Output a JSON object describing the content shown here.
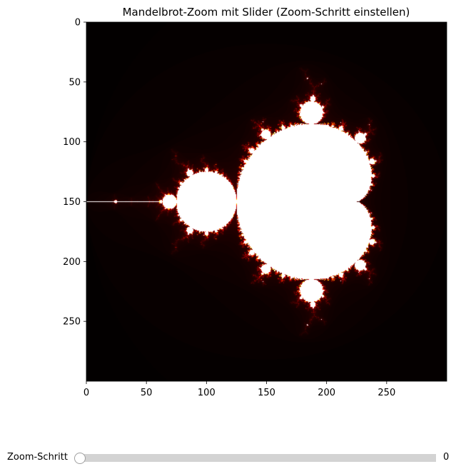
{
  "chart_data": {
    "type": "heatmap",
    "title": "Mandelbrot-Zoom mit Slider (Zoom-Schritt einstellen)",
    "xlabel": "",
    "ylabel": "",
    "image_size": [
      300,
      300
    ],
    "xlim": [
      0,
      300
    ],
    "ylim": [
      300,
      0
    ],
    "x_ticks": [
      0,
      50,
      100,
      150,
      200,
      250
    ],
    "y_ticks": [
      0,
      50,
      100,
      150,
      200,
      250
    ],
    "colormap": "hot",
    "complex_region": {
      "re": [
        -2.0,
        1.0
      ],
      "im": [
        -1.5,
        1.5
      ]
    },
    "max_iterations": 256
  },
  "slider": {
    "label": "Zoom-Schritt",
    "value": "0",
    "fraction": 0,
    "track_color": "#d3d3d3",
    "handle_color": "#ffffff"
  }
}
